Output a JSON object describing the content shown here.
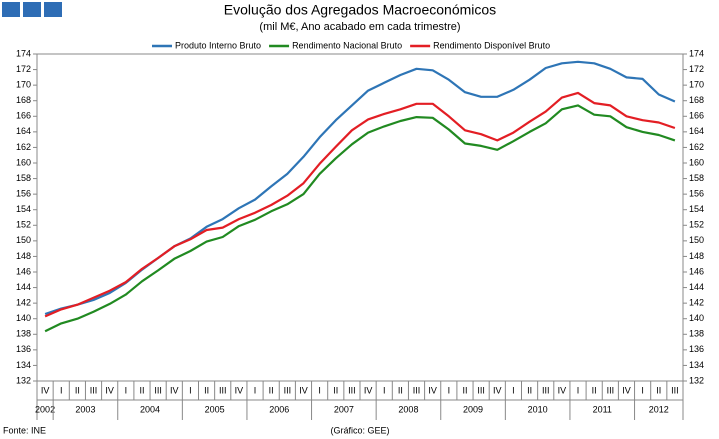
{
  "chart_data": {
    "type": "line",
    "title": "Evolução dos Agregados Macroeconómicos",
    "subtitle": "(mil M€, Ano acabado em cada trimestre)",
    "source": "Fonte: INE",
    "credit": "(Gráfico: GEE)",
    "categories": [
      "IV",
      "I",
      "II",
      "III",
      "IV",
      "I",
      "II",
      "III",
      "IV",
      "I",
      "II",
      "III",
      "IV",
      "I",
      "II",
      "III",
      "IV",
      "I",
      "II",
      "III",
      "IV",
      "I",
      "II",
      "III",
      "IV",
      "I",
      "II",
      "III",
      "IV",
      "I",
      "II",
      "III",
      "IV",
      "I",
      "II",
      "III",
      "IV",
      "I",
      "II",
      "III"
    ],
    "years": [
      "2002",
      "2003",
      "2004",
      "2005",
      "2006",
      "2007",
      "2008",
      "2009",
      "2010",
      "2011",
      "2012"
    ],
    "series": [
      {
        "name": "Produto Interno Bruto",
        "color": "#2e75b6",
        "values": [
          140.6,
          141.3,
          141.8,
          142.4,
          143.3,
          144.6,
          146.3,
          147.8,
          149.3,
          150.3,
          151.8,
          152.8,
          154.2,
          155.3,
          157.0,
          158.6,
          160.8,
          163.3,
          165.5,
          167.4,
          169.3,
          170.3,
          171.3,
          172.1,
          171.9,
          170.7,
          169.1,
          168.5,
          168.5,
          169.4,
          170.7,
          172.2,
          172.8,
          173.0,
          172.8,
          172.1,
          171.0,
          170.8,
          168.8,
          167.9
        ]
      },
      {
        "name": "Rendimento Nacional Bruto",
        "color": "#218a21",
        "values": [
          138.4,
          139.4,
          140.0,
          140.9,
          141.9,
          143.1,
          144.8,
          146.2,
          147.7,
          148.7,
          149.9,
          150.5,
          151.9,
          152.7,
          153.8,
          154.7,
          156.0,
          158.6,
          160.6,
          162.4,
          163.9,
          164.7,
          165.4,
          165.9,
          165.8,
          164.3,
          162.5,
          162.2,
          161.7,
          162.8,
          164.0,
          165.1,
          166.9,
          167.4,
          166.2,
          166.0,
          164.6,
          164.0,
          163.6,
          162.9
        ]
      },
      {
        "name": "Rendimento Disponível Bruto",
        "color": "#e31e24",
        "values": [
          140.3,
          141.2,
          141.8,
          142.7,
          143.6,
          144.7,
          146.4,
          147.8,
          149.3,
          150.2,
          151.4,
          151.7,
          152.8,
          153.6,
          154.6,
          155.8,
          157.4,
          159.9,
          162.1,
          164.2,
          165.6,
          166.3,
          166.9,
          167.6,
          167.6,
          166.0,
          164.2,
          163.7,
          162.9,
          163.9,
          165.3,
          166.6,
          168.4,
          169.0,
          167.7,
          167.4,
          166.0,
          165.5,
          165.2,
          164.5
        ]
      }
    ],
    "ylim": [
      132,
      174
    ],
    "yticks": [
      132,
      134,
      136,
      138,
      140,
      142,
      144,
      146,
      148,
      150,
      152,
      154,
      156,
      158,
      160,
      162,
      164,
      166,
      168,
      170,
      172,
      174
    ],
    "y2lim": [
      132,
      174
    ],
    "y2ticks": [
      132,
      134,
      136,
      138,
      140,
      142,
      144,
      146,
      148,
      150,
      152,
      154,
      156,
      158,
      160,
      162,
      164,
      166,
      168,
      170,
      172,
      174
    ],
    "legend": "top",
    "grid": false
  }
}
